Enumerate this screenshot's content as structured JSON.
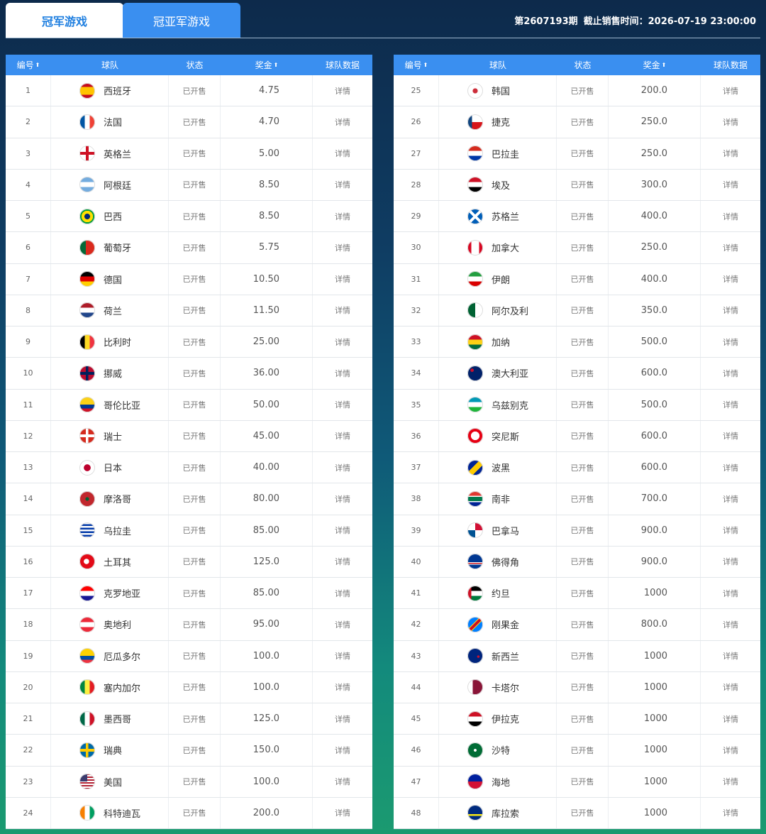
{
  "tabs": [
    "冠军游戏",
    "冠亚军游戏"
  ],
  "issue": "第2607193期",
  "deadline": "截止销售时间：2026-07-19 23:00:00",
  "tables": [
    {
      "headers": [
        "编号",
        "球队",
        "状态",
        "奖金",
        "球队数据"
      ],
      "rows": [
        [
          "1",
          "西班牙",
          "已开售",
          "4.75",
          "详情"
        ],
        [
          "2",
          "法国",
          "已开售",
          "4.70",
          "详情"
        ],
        [
          "3",
          "英格兰",
          "已开售",
          "5.00",
          "详情"
        ],
        [
          "4",
          "阿根廷",
          "已开售",
          "8.50",
          "详情"
        ],
        [
          "5",
          "巴西",
          "已开售",
          "8.50",
          "详情"
        ],
        [
          "6",
          "葡萄牙",
          "已开售",
          "5.75",
          "详情"
        ],
        [
          "7",
          "德国",
          "已开售",
          "10.50",
          "详情"
        ],
        [
          "8",
          "荷兰",
          "已开售",
          "11.50",
          "详情"
        ],
        [
          "9",
          "比利时",
          "已开售",
          "25.00",
          "详情"
        ],
        [
          "10",
          "挪威",
          "已开售",
          "36.00",
          "详情"
        ],
        [
          "11",
          "哥伦比亚",
          "已开售",
          "50.00",
          "详情"
        ],
        [
          "12",
          "瑞士",
          "已开售",
          "45.00",
          "详情"
        ],
        [
          "13",
          "日本",
          "已开售",
          "40.00",
          "详情"
        ],
        [
          "14",
          "摩洛哥",
          "已开售",
          "80.00",
          "详情"
        ],
        [
          "15",
          "乌拉圭",
          "已开售",
          "85.00",
          "详情"
        ],
        [
          "16",
          "土耳其",
          "已开售",
          "125.0",
          "详情"
        ],
        [
          "17",
          "克罗地亚",
          "已开售",
          "85.00",
          "详情"
        ],
        [
          "18",
          "奥地利",
          "已开售",
          "95.00",
          "详情"
        ],
        [
          "19",
          "厄瓜多尔",
          "已开售",
          "100.0",
          "详情"
        ],
        [
          "20",
          "塞内加尔",
          "已开售",
          "100.0",
          "详情"
        ],
        [
          "21",
          "墨西哥",
          "已开售",
          "125.0",
          "详情"
        ],
        [
          "22",
          "瑞典",
          "已开售",
          "150.0",
          "详情"
        ],
        [
          "23",
          "美国",
          "已开售",
          "100.0",
          "详情"
        ],
        [
          "24",
          "科特迪瓦",
          "已开售",
          "200.0",
          "详情"
        ]
      ]
    },
    {
      "headers": [
        "编号",
        "球队",
        "状态",
        "奖金",
        "球队数据"
      ],
      "rows": [
        [
          "25",
          "韩国",
          "已开售",
          "200.0",
          "详情"
        ],
        [
          "26",
          "捷克",
          "已开售",
          "250.0",
          "详情"
        ],
        [
          "27",
          "巴拉圭",
          "已开售",
          "250.0",
          "详情"
        ],
        [
          "28",
          "埃及",
          "已开售",
          "300.0",
          "详情"
        ],
        [
          "29",
          "苏格兰",
          "已开售",
          "400.0",
          "详情"
        ],
        [
          "30",
          "加拿大",
          "已开售",
          "250.0",
          "详情"
        ],
        [
          "31",
          "伊朗",
          "已开售",
          "400.0",
          "详情"
        ],
        [
          "32",
          "阿尔及利",
          "已开售",
          "350.0",
          "详情"
        ],
        [
          "33",
          "加纳",
          "已开售",
          "500.0",
          "详情"
        ],
        [
          "34",
          "澳大利亚",
          "已开售",
          "600.0",
          "详情"
        ],
        [
          "35",
          "乌兹别克",
          "已开售",
          "500.0",
          "详情"
        ],
        [
          "36",
          "突尼斯",
          "已开售",
          "600.0",
          "详情"
        ],
        [
          "37",
          "波黑",
          "已开售",
          "600.0",
          "详情"
        ],
        [
          "38",
          "南非",
          "已开售",
          "700.0",
          "详情"
        ],
        [
          "39",
          "巴拿马",
          "已开售",
          "900.0",
          "详情"
        ],
        [
          "40",
          "佛得角",
          "已开售",
          "900.0",
          "详情"
        ],
        [
          "41",
          "约旦",
          "已开售",
          "1000",
          "详情"
        ],
        [
          "42",
          "刚果金",
          "已开售",
          "800.0",
          "详情"
        ],
        [
          "43",
          "新西兰",
          "已开售",
          "1000",
          "详情"
        ],
        [
          "44",
          "卡塔尔",
          "已开售",
          "1000",
          "详情"
        ],
        [
          "45",
          "伊拉克",
          "已开售",
          "1000",
          "详情"
        ],
        [
          "46",
          "沙特",
          "已开售",
          "1000",
          "详情"
        ],
        [
          "47",
          "海地",
          "已开售",
          "1000",
          "详情"
        ],
        [
          "48",
          "库拉索",
          "已开售",
          "1000",
          "详情"
        ]
      ]
    }
  ]
}
